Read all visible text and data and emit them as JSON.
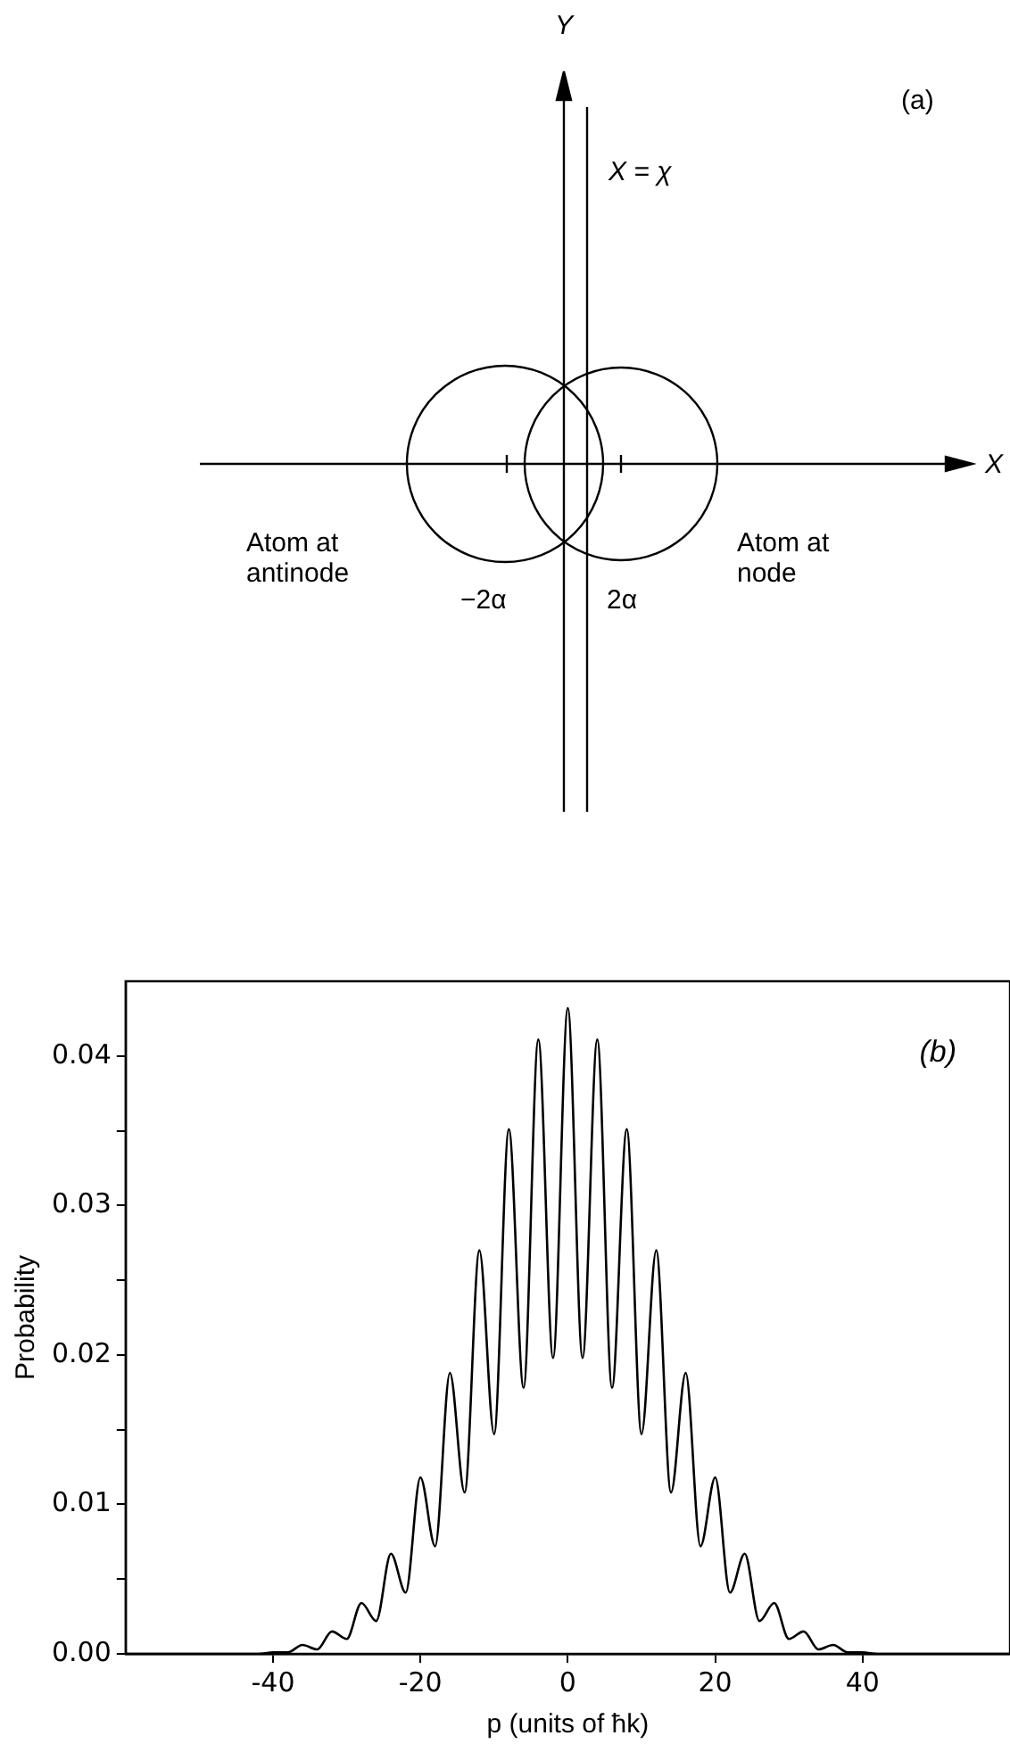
{
  "chart_data": [
    {
      "type": "other",
      "title": "(a)",
      "annotations": [
        "Y",
        "X = χ",
        "X",
        "Atom at antinode",
        "Atom at node",
        "−2α",
        "2α"
      ]
    },
    {
      "type": "line",
      "xlabel": "p (units of ħk)",
      "ylabel": "Probability",
      "annotations": [
        "(b)"
      ],
      "x": [
        -60,
        -44,
        -42,
        -40,
        -38,
        -36,
        -34,
        -32,
        -30,
        -28,
        -26,
        -24,
        -22,
        -20,
        -18,
        -16,
        -14,
        -12,
        -10,
        -8,
        -6,
        -4,
        -2,
        0,
        2,
        4,
        6,
        8,
        10,
        12,
        14,
        16,
        18,
        20,
        22,
        24,
        26,
        28,
        30,
        32,
        34,
        36,
        38,
        40,
        42,
        44,
        60
      ],
      "series": [
        {
          "color": "#000000",
          "values": [
            0,
            0,
            0,
            0.0001,
            0.0001,
            0.0006,
            0.0003,
            0.0015,
            0.001,
            0.0034,
            0.0022,
            0.0067,
            0.0041,
            0.0118,
            0.0072,
            0.0188,
            0.0108,
            0.027,
            0.0147,
            0.0351,
            0.0178,
            0.0411,
            0.0198,
            0.0432,
            0.0198,
            0.0411,
            0.0178,
            0.0351,
            0.0147,
            0.027,
            0.0108,
            0.0188,
            0.0072,
            0.0118,
            0.0041,
            0.0067,
            0.0022,
            0.0034,
            0.001,
            0.0015,
            0.0003,
            0.0006,
            0.0001,
            0.0001,
            0,
            0,
            0
          ]
        }
      ],
      "xlim": [
        -60,
        60
      ],
      "xticks": [
        -40,
        -20,
        0,
        20,
        40
      ],
      "ylim": [
        0,
        0.045
      ],
      "yticks": [
        {
          "value": 0,
          "label": "0.00"
        },
        {
          "value": 0.005,
          "label": null
        },
        0.01,
        {
          "value": 0.015,
          "label": null
        },
        0.02,
        {
          "value": 0.025,
          "label": null
        },
        0.03,
        {
          "value": 0.035,
          "label": null
        },
        0.04
      ],
      "marker": "none",
      "line_style": "solid"
    }
  ]
}
